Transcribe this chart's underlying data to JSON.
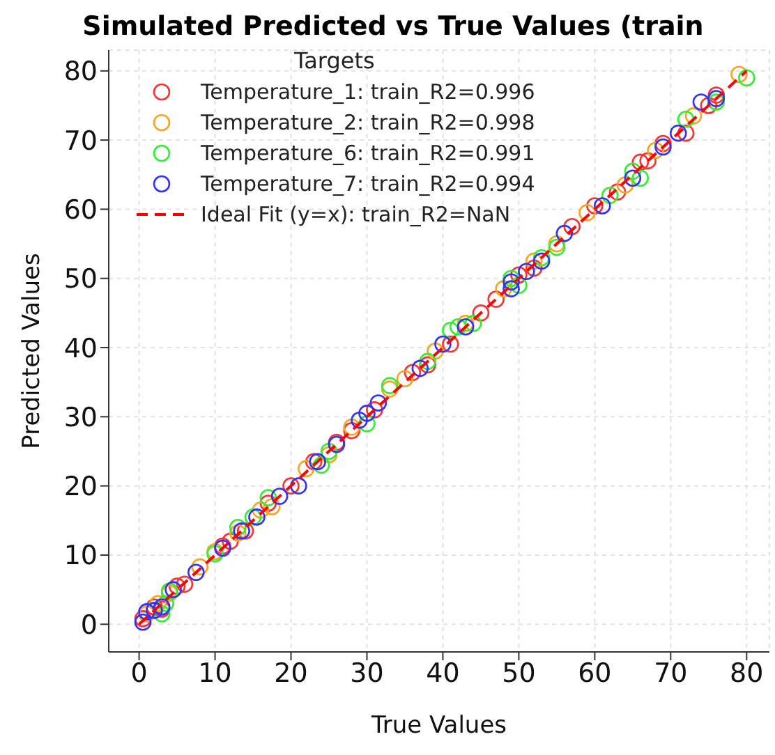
{
  "chart_data": {
    "type": "scatter",
    "title": "Simulated Predicted vs True Values (train",
    "xlabel": "True Values",
    "ylabel": "Predicted Values",
    "legend_title": "Targets",
    "xlim": [
      -4,
      83
    ],
    "ylim": [
      -4,
      83
    ],
    "xticks": [
      0,
      10,
      20,
      30,
      40,
      50,
      60,
      70,
      80
    ],
    "yticks": [
      0,
      10,
      20,
      30,
      40,
      50,
      60,
      70,
      80
    ],
    "grid": true,
    "legend": "top left",
    "marker": "circle",
    "series": [
      {
        "name": "Temperature_1: train_R2=0.996",
        "color": "#ff3333",
        "x": [
          0.5,
          2,
          3,
          5,
          6,
          11,
          12,
          14,
          17,
          20,
          23,
          26,
          28,
          31,
          36,
          38,
          41,
          45,
          47,
          50,
          52,
          57,
          60,
          63,
          66,
          67,
          69,
          72,
          75,
          76
        ],
        "values": [
          0.8,
          2.5,
          2.2,
          5.5,
          5.8,
          11.3,
          12,
          13.5,
          17.5,
          20,
          23.5,
          26.3,
          28,
          31,
          36.4,
          37.5,
          40.5,
          45,
          47,
          50.5,
          51.5,
          57.5,
          60.5,
          62.5,
          66.8,
          67,
          69.5,
          71,
          75,
          76.5
        ]
      },
      {
        "name": "Temperature_2: train_R2=0.998",
        "color": "#f5a623",
        "x": [
          1,
          2.5,
          4,
          8,
          10,
          13,
          16,
          17.5,
          22,
          25,
          28,
          33,
          35,
          39,
          43,
          48,
          52,
          55,
          59,
          64,
          68,
          73,
          79
        ],
        "values": [
          1.5,
          3,
          4.5,
          8.3,
          10.5,
          13.2,
          16.5,
          17,
          22.5,
          24.5,
          28.5,
          34,
          35.5,
          39.5,
          43.5,
          48.5,
          52.5,
          55,
          59.5,
          63.5,
          68.5,
          73.5,
          79.5
        ]
      },
      {
        "name": "Temperature_6: train_R2=0.991",
        "color": "#33ee33",
        "x": [
          3,
          3.5,
          4,
          10,
          13,
          15,
          17,
          24,
          25,
          30,
          33,
          38,
          41,
          42,
          44,
          49,
          50,
          53,
          55,
          62,
          65,
          66,
          72,
          76,
          80
        ],
        "values": [
          1.5,
          3,
          4.8,
          10.2,
          14,
          15.5,
          18.3,
          23,
          25,
          29,
          34.5,
          38,
          42.5,
          43,
          43.5,
          50,
          49,
          53,
          54.5,
          62,
          65.5,
          64.5,
          73,
          75.5,
          79
        ]
      },
      {
        "name": "Temperature_7: train_R2=0.994",
        "color": "#3333ff",
        "x": [
          0.5,
          1,
          2,
          3,
          4.5,
          7.5,
          11,
          13.5,
          15.5,
          18.5,
          21,
          23.5,
          26,
          29,
          30,
          31.5,
          37,
          40,
          43,
          49,
          49,
          51,
          53,
          56,
          61,
          65,
          69,
          71,
          74,
          76
        ],
        "values": [
          0.3,
          1.8,
          2,
          2.5,
          5,
          7.5,
          11,
          13.5,
          15.5,
          18.5,
          20,
          23.5,
          26,
          29.5,
          30.5,
          32,
          37,
          40.5,
          43,
          49.5,
          48.5,
          51,
          52.5,
          56.5,
          60.5,
          64.5,
          69,
          71,
          75.5,
          76
        ]
      },
      {
        "name": "Ideal Fit (y=x): train_R2=NaN",
        "type": "line",
        "marker": "none",
        "line_style": "dashed",
        "color": "#ff0000",
        "x": [
          0,
          80
        ],
        "values": [
          0,
          80
        ]
      }
    ]
  }
}
